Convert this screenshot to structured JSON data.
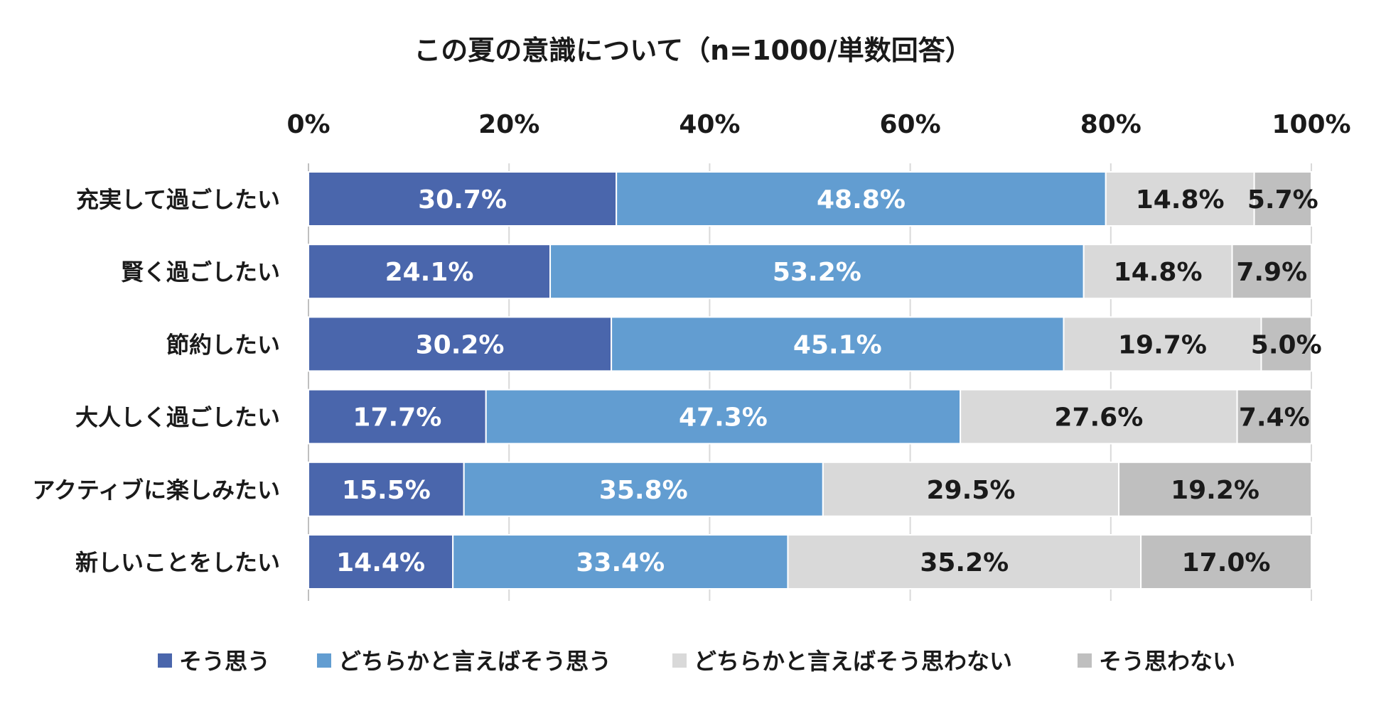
{
  "chart_data": {
    "type": "bar",
    "orientation": "horizontal",
    "stacked": "percent",
    "title": "この夏の意識について（n=1000/単数回答）",
    "xlabel": "",
    "ylabel": "",
    "xlim": [
      0,
      100
    ],
    "x_ticks": [
      "0%",
      "20%",
      "40%",
      "60%",
      "80%",
      "100%"
    ],
    "x_tick_values": [
      0,
      20,
      40,
      60,
      80,
      100
    ],
    "x_axis_position": "top",
    "grid": true,
    "legend_position": "bottom",
    "categories": [
      "充実して過ごしたい",
      "賢く過ごしたい",
      "節約したい",
      "大人しく過ごしたい",
      "アクティブに楽しみたい",
      "新しいことをしたい"
    ],
    "series": [
      {
        "name": "そう思う",
        "color": "#4a66ac",
        "label_color": "#ffffff",
        "values": [
          30.7,
          24.1,
          30.2,
          17.7,
          15.5,
          14.4
        ],
        "labels": [
          "30.7%",
          "24.1%",
          "30.2%",
          "17.7%",
          "15.5%",
          "14.4%"
        ]
      },
      {
        "name": "どちらかと言えばそう思う",
        "color": "#629dd1",
        "label_color": "#ffffff",
        "values": [
          48.8,
          53.2,
          45.1,
          47.3,
          35.8,
          33.4
        ],
        "labels": [
          "48.8%",
          "53.2%",
          "45.1%",
          "47.3%",
          "35.8%",
          "33.4%"
        ]
      },
      {
        "name": "どちらかと言えばそう思わない",
        "color": "#d9d9d9",
        "label_color": "#1a1a1a",
        "values": [
          14.8,
          14.8,
          19.7,
          27.6,
          29.5,
          35.2
        ],
        "labels": [
          "14.8%",
          "14.8%",
          "19.7%",
          "27.6%",
          "29.5%",
          "35.2%"
        ]
      },
      {
        "name": "そう思わない",
        "color": "#bfbfbf",
        "label_color": "#1a1a1a",
        "values": [
          5.7,
          7.9,
          5.0,
          7.4,
          19.2,
          17.0
        ],
        "labels": [
          "5.7%",
          "7.9%",
          "5.0%",
          "7.4%",
          "19.2%",
          "17.0%"
        ]
      }
    ]
  }
}
